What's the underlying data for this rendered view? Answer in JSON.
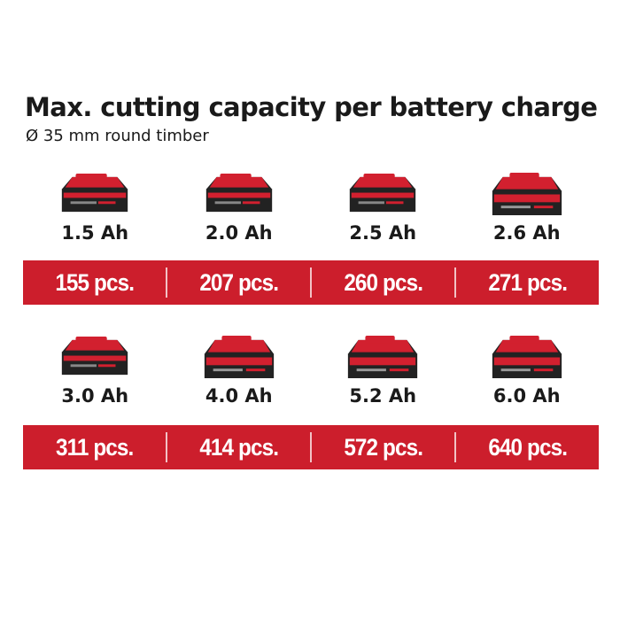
{
  "title": "Max. cutting capacity per battery charge",
  "subtitle": "Ø 35 mm round timber",
  "colors": {
    "band": "#cc1e2c",
    "battery_red": "#d2202f",
    "battery_dark": "#2a2a2a",
    "text": "#1a1a1a"
  },
  "row1": {
    "batteries": [
      {
        "capacity": "1.5 Ah",
        "icon": "battery-pack-icon",
        "pieces": "155 pcs."
      },
      {
        "capacity": "2.0 Ah",
        "icon": "battery-pack-icon",
        "pieces": "207 pcs."
      },
      {
        "capacity": "2.5 Ah",
        "icon": "battery-pack-icon",
        "pieces": "260 pcs."
      },
      {
        "capacity": "2.6 Ah",
        "icon": "battery-pack-icon",
        "pieces": "271 pcs."
      }
    ]
  },
  "row2": {
    "batteries": [
      {
        "capacity": "3.0 Ah",
        "icon": "battery-pack-icon",
        "pieces": "311 pcs."
      },
      {
        "capacity": "4.0 Ah",
        "icon": "battery-pack-icon",
        "pieces": "414 pcs."
      },
      {
        "capacity": "5.2 Ah",
        "icon": "battery-pack-icon",
        "pieces": "572 pcs."
      },
      {
        "capacity": "6.0 Ah",
        "icon": "battery-pack-icon",
        "pieces": "640 pcs."
      }
    ]
  }
}
